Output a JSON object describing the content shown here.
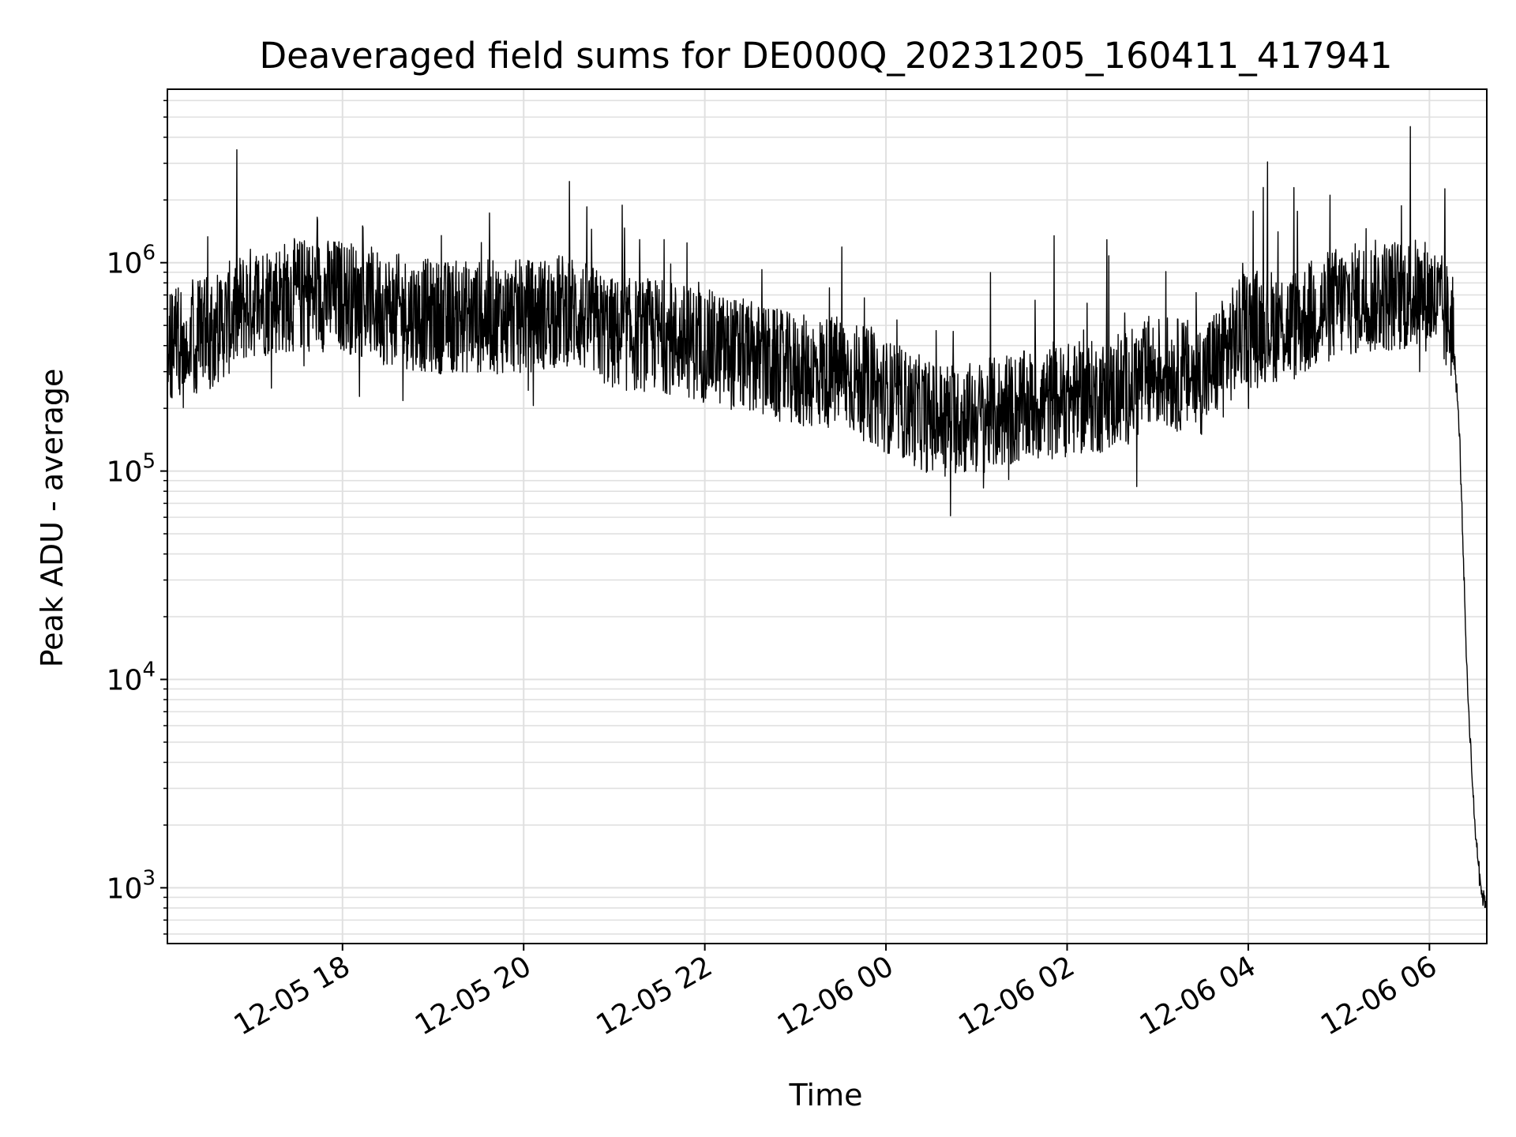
{
  "chart_data": {
    "type": "line",
    "title": "Deaveraged field sums for DE000Q_20231205_160411_417941",
    "xlabel": "Time",
    "ylabel": "Peak ADU - average",
    "x_range": [
      "2023-12-05T16:04",
      "2023-12-06T06:38"
    ],
    "ylim": [
      540,
      6800000
    ],
    "yscale": "log",
    "grid": true,
    "line_color": "#000000",
    "grid_color": "#e0e0e0",
    "x_ticks": [
      {
        "value": "2023-12-05T18:00",
        "label": "12-05 18"
      },
      {
        "value": "2023-12-05T20:00",
        "label": "12-05 20"
      },
      {
        "value": "2023-12-05T22:00",
        "label": "12-05 22"
      },
      {
        "value": "2023-12-06T00:00",
        "label": "12-06 00"
      },
      {
        "value": "2023-12-06T02:00",
        "label": "12-06 02"
      },
      {
        "value": "2023-12-06T04:00",
        "label": "12-06 04"
      },
      {
        "value": "2023-12-06T06:00",
        "label": "12-06 06"
      }
    ],
    "y_ticks": [
      {
        "value": 1000,
        "base": "10",
        "exp": "3"
      },
      {
        "value": 10000,
        "base": "10",
        "exp": "4"
      },
      {
        "value": 100000,
        "base": "10",
        "exp": "5"
      },
      {
        "value": 1000000,
        "base": "10",
        "exp": "6"
      }
    ],
    "series": [
      {
        "x": [
          "2023-12-05T16:04",
          "2023-12-05T16:30",
          "2023-12-05T17:00",
          "2023-12-05T17:30",
          "2023-12-05T18:00",
          "2023-12-05T18:30",
          "2023-12-05T19:00",
          "2023-12-05T19:30",
          "2023-12-05T20:00",
          "2023-12-05T20:30",
          "2023-12-05T21:00",
          "2023-12-05T21:30",
          "2023-12-05T22:00",
          "2023-12-05T22:30",
          "2023-12-05T23:00",
          "2023-12-05T23:30",
          "2023-12-06T00:00",
          "2023-12-06T00:30",
          "2023-12-06T01:00",
          "2023-12-06T01:30",
          "2023-12-06T02:00",
          "2023-12-06T02:30",
          "2023-12-06T03:00",
          "2023-12-06T03:30",
          "2023-12-06T04:00",
          "2023-12-06T04:30",
          "2023-12-06T05:00",
          "2023-12-06T05:30",
          "2023-12-06T06:00",
          "2023-12-06T06:15",
          "2023-12-06T06:20",
          "2023-12-06T06:25",
          "2023-12-06T06:30",
          "2023-12-06T06:35",
          "2023-12-06T06:38"
        ],
        "y": [
          400000,
          450000,
          650000,
          700000,
          700000,
          600000,
          550000,
          550000,
          550000,
          600000,
          450000,
          450000,
          400000,
          350000,
          300000,
          300000,
          230000,
          180000,
          180000,
          200000,
          220000,
          230000,
          300000,
          280000,
          500000,
          500000,
          650000,
          700000,
          700000,
          500000,
          150000,
          10000,
          2000,
          900,
          850
        ]
      }
    ]
  }
}
